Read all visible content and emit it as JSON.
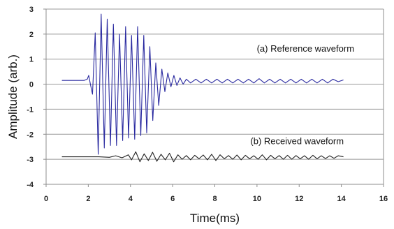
{
  "chart_data": {
    "type": "line",
    "title": "",
    "xlabel": "Time(ms)",
    "ylabel": "Amplitude (arb.)",
    "xlim": [
      0,
      16
    ],
    "ylim": [
      -4,
      3
    ],
    "xticks": [
      0,
      2,
      4,
      6,
      8,
      10,
      12,
      14,
      16
    ],
    "yticks": [
      -4,
      -3,
      -2,
      -1,
      0,
      1,
      2,
      3
    ],
    "grid": "horizontal",
    "legend": "none",
    "annotations": [
      {
        "text": "(a) Reference waveform",
        "x": 12.3,
        "y": 1.3
      },
      {
        "text": "(b) Received waveform",
        "x": 11.9,
        "y": -2.4
      }
    ],
    "series": [
      {
        "name": "",
        "color": "#2a2aa0",
        "x": [
          0.75,
          1.8,
          1.95,
          2.02,
          2.1,
          2.2,
          2.33,
          2.47,
          2.61,
          2.76,
          2.9,
          3.05,
          3.19,
          3.34,
          3.48,
          3.63,
          3.77,
          3.91,
          4.05,
          4.2,
          4.34,
          4.49,
          4.63,
          4.77,
          4.92,
          5.06,
          5.2,
          5.34,
          5.49,
          5.63,
          5.77,
          5.92,
          6.06,
          6.2,
          6.35,
          6.5,
          6.65,
          6.85,
          7.1,
          7.35,
          7.6,
          7.85,
          8.1,
          8.35,
          8.6,
          8.85,
          9.1,
          9.35,
          9.6,
          9.85,
          10.1,
          10.35,
          10.6,
          10.85,
          11.1,
          11.35,
          11.6,
          11.85,
          12.1,
          12.35,
          12.6,
          12.85,
          13.1,
          13.35,
          13.6,
          13.85,
          14.1
        ],
        "y": [
          0.15,
          0.15,
          0.2,
          0.35,
          0.0,
          -0.4,
          2.05,
          -2.8,
          2.8,
          -2.55,
          2.6,
          -2.45,
          2.4,
          -2.45,
          2.0,
          -2.25,
          2.3,
          -2.15,
          1.95,
          -2.2,
          2.3,
          -2.05,
          1.95,
          -1.95,
          1.5,
          -1.45,
          0.85,
          -0.85,
          0.6,
          -0.3,
          0.45,
          -0.1,
          0.35,
          -0.05,
          0.25,
          0.0,
          0.2,
          0.05,
          0.2,
          0.05,
          0.2,
          0.05,
          0.2,
          0.05,
          0.2,
          0.05,
          0.2,
          0.05,
          0.2,
          0.05,
          0.22,
          0.05,
          0.2,
          0.05,
          0.2,
          0.05,
          0.2,
          0.05,
          0.2,
          0.05,
          0.2,
          0.05,
          0.2,
          0.05,
          0.2,
          0.1,
          0.17
        ]
      },
      {
        "name": "",
        "color": "#222222",
        "x": [
          0.75,
          2.5,
          3.0,
          3.3,
          3.6,
          3.9,
          4.05,
          4.25,
          4.45,
          4.65,
          4.85,
          5.05,
          5.25,
          5.45,
          5.65,
          5.85,
          6.05,
          6.25,
          6.45,
          6.65,
          6.85,
          7.05,
          7.25,
          7.45,
          7.65,
          7.85,
          8.05,
          8.25,
          8.45,
          8.65,
          8.85,
          9.05,
          9.25,
          9.45,
          9.65,
          9.85,
          10.05,
          10.25,
          10.45,
          10.65,
          10.85,
          11.05,
          11.25,
          11.45,
          11.65,
          11.85,
          12.05,
          12.25,
          12.45,
          12.65,
          12.85,
          13.05,
          13.25,
          13.45,
          13.65,
          13.85,
          14.1
        ],
        "y": [
          -2.9,
          -2.9,
          -2.92,
          -2.86,
          -2.94,
          -2.82,
          -3.02,
          -2.7,
          -3.1,
          -2.78,
          -3.05,
          -2.72,
          -3.08,
          -2.8,
          -3.02,
          -2.76,
          -3.1,
          -2.82,
          -3.0,
          -2.85,
          -3.02,
          -2.84,
          -2.98,
          -2.83,
          -3.02,
          -2.8,
          -3.05,
          -2.82,
          -2.98,
          -2.85,
          -3.0,
          -2.83,
          -3.02,
          -2.84,
          -2.98,
          -2.86,
          -3.0,
          -2.82,
          -3.02,
          -2.84,
          -2.98,
          -2.85,
          -3.0,
          -2.84,
          -3.0,
          -2.85,
          -2.98,
          -2.86,
          -3.0,
          -2.84,
          -2.98,
          -2.86,
          -2.97,
          -2.86,
          -2.96,
          -2.86,
          -2.9
        ]
      }
    ]
  }
}
